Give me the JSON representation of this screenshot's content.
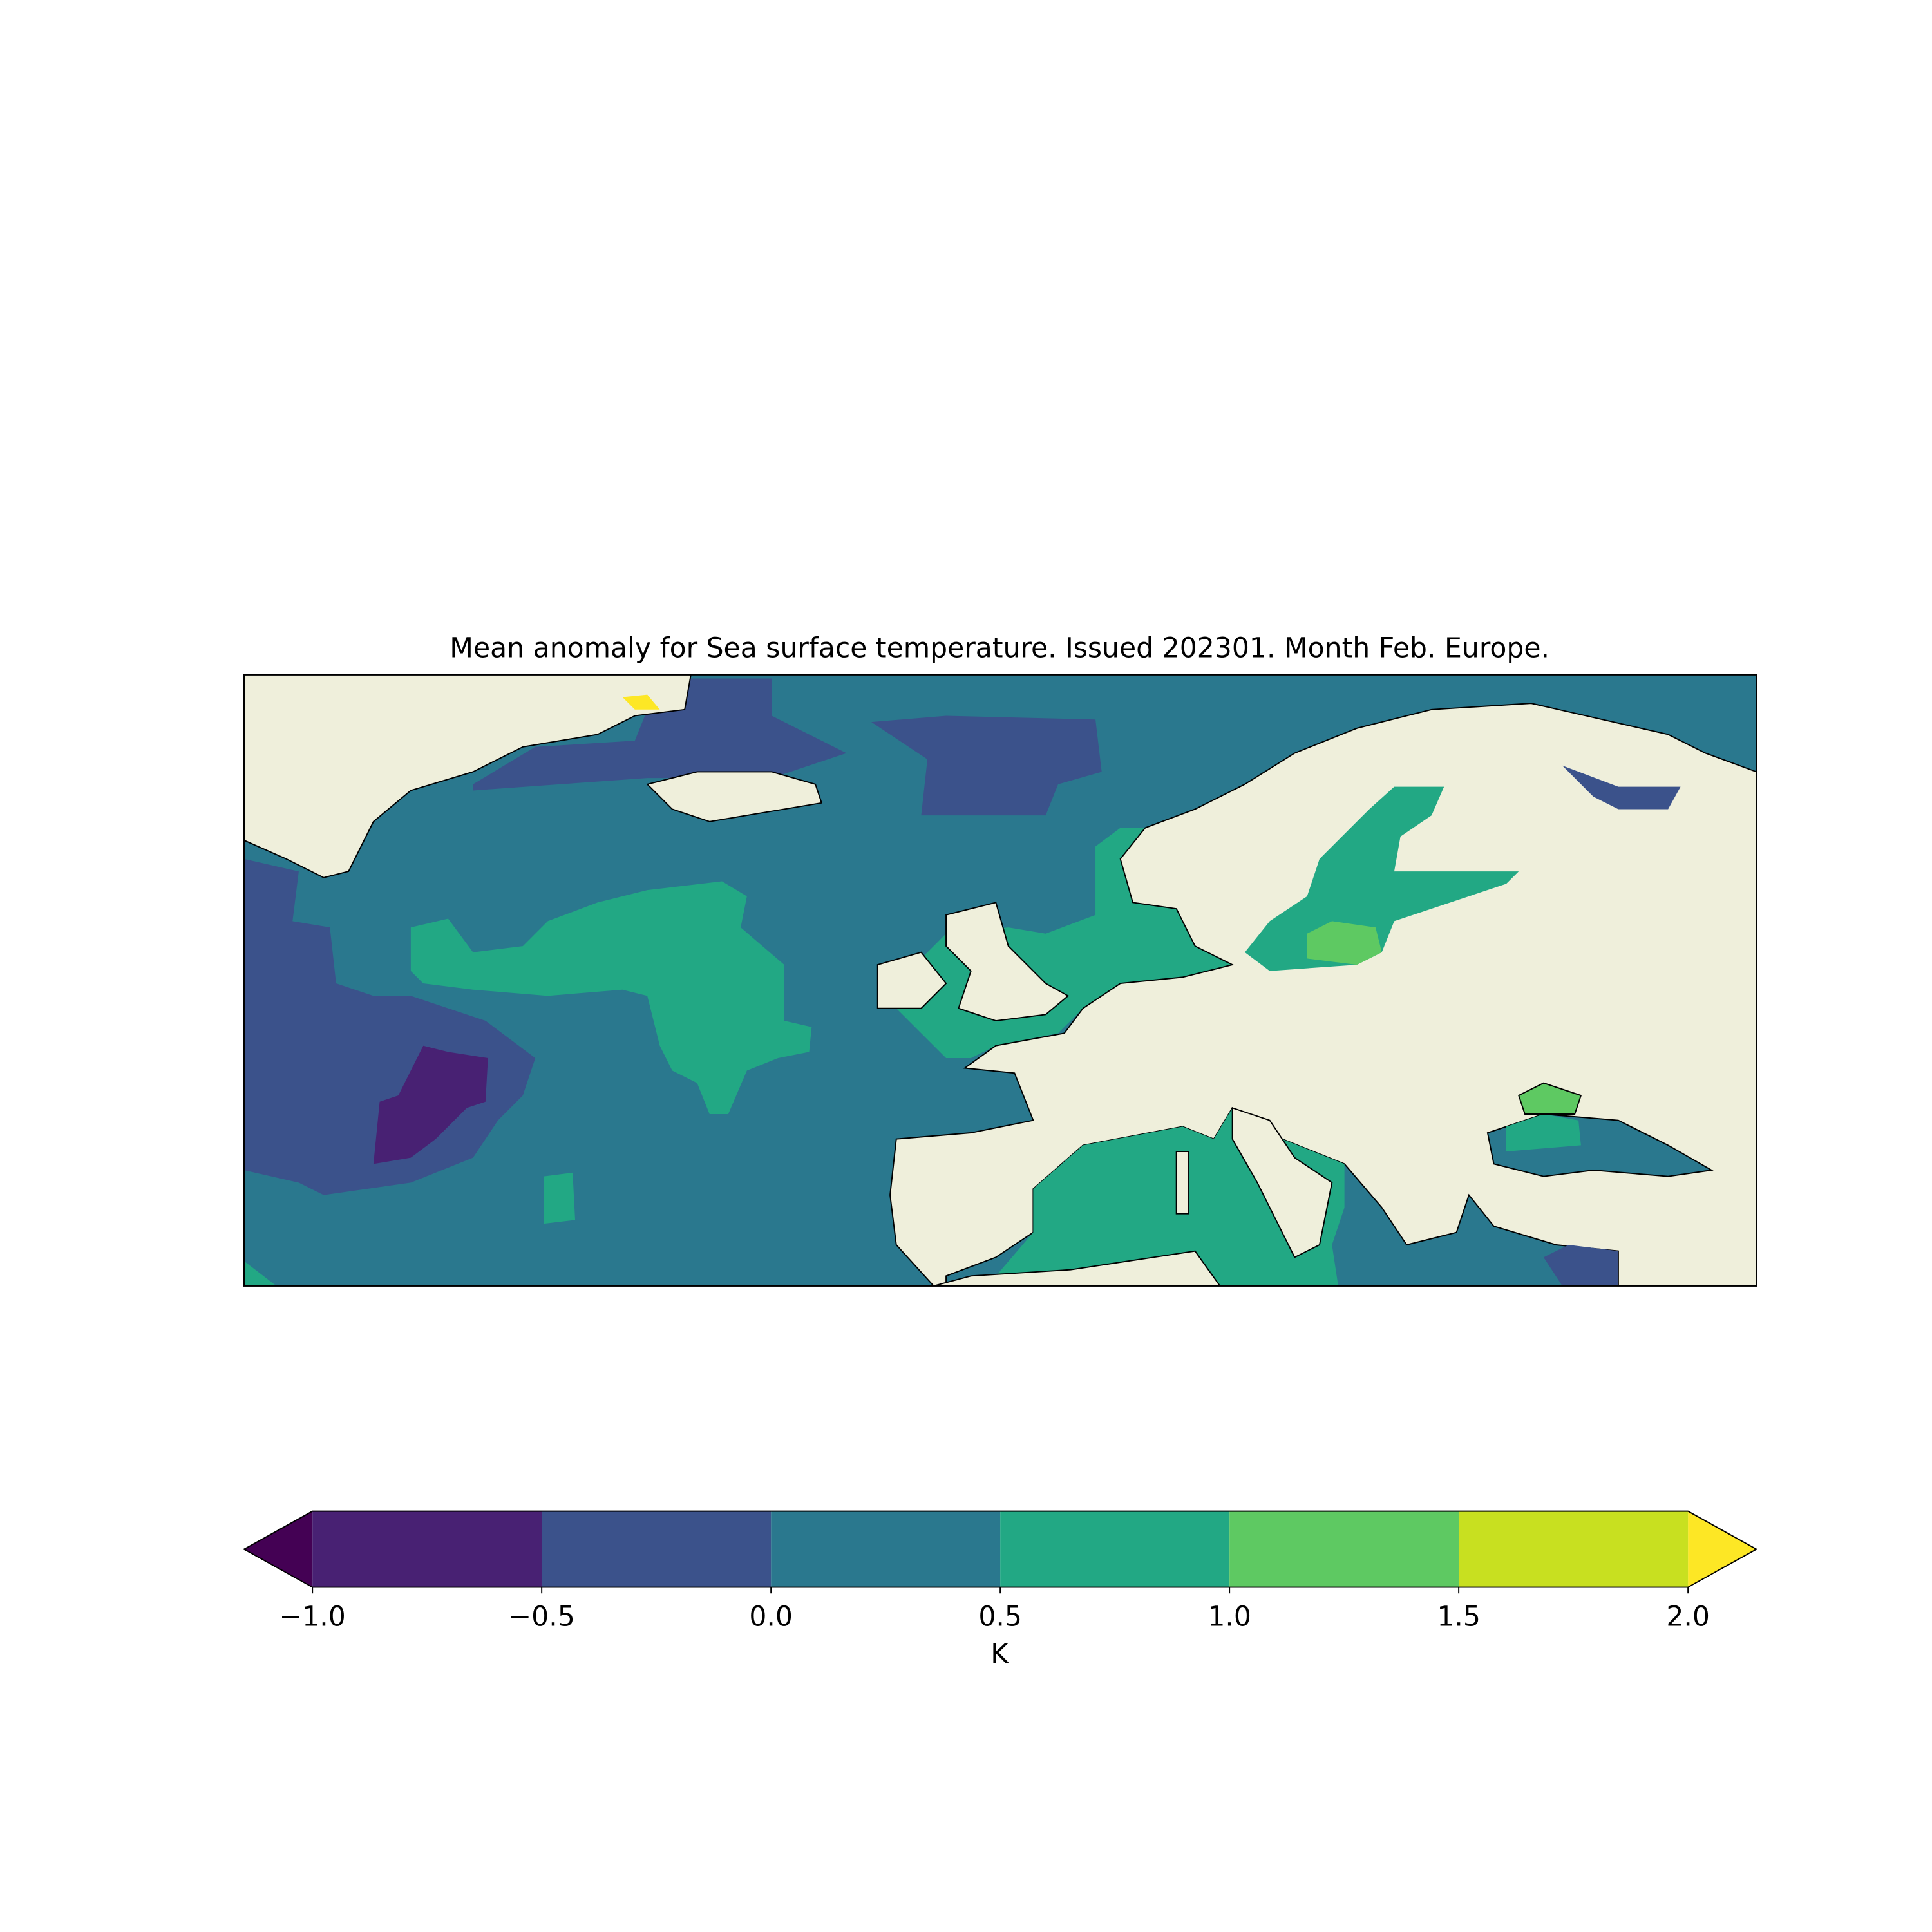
{
  "chart_data": {
    "type": "map",
    "title": "Mean anomaly for Sea surface temperature. Issued 202301. Month Feb. Europe.",
    "colorbar": {
      "label": "K",
      "ticks": [
        {
          "value": -1.0,
          "label": "−1.0"
        },
        {
          "value": -0.5,
          "label": "−0.5"
        },
        {
          "value": 0.0,
          "label": "0.0"
        },
        {
          "value": 0.5,
          "label": "0.5"
        },
        {
          "value": 1.0,
          "label": "1.0"
        },
        {
          "value": 1.5,
          "label": "1.5"
        },
        {
          "value": 2.0,
          "label": "2.0"
        }
      ],
      "colors": [
        "#482173",
        "#3b528b",
        "#2a788e",
        "#22a884",
        "#5ec962",
        "#c8e020"
      ],
      "under_color": "#440154",
      "over_color": "#fde725"
    }
  }
}
